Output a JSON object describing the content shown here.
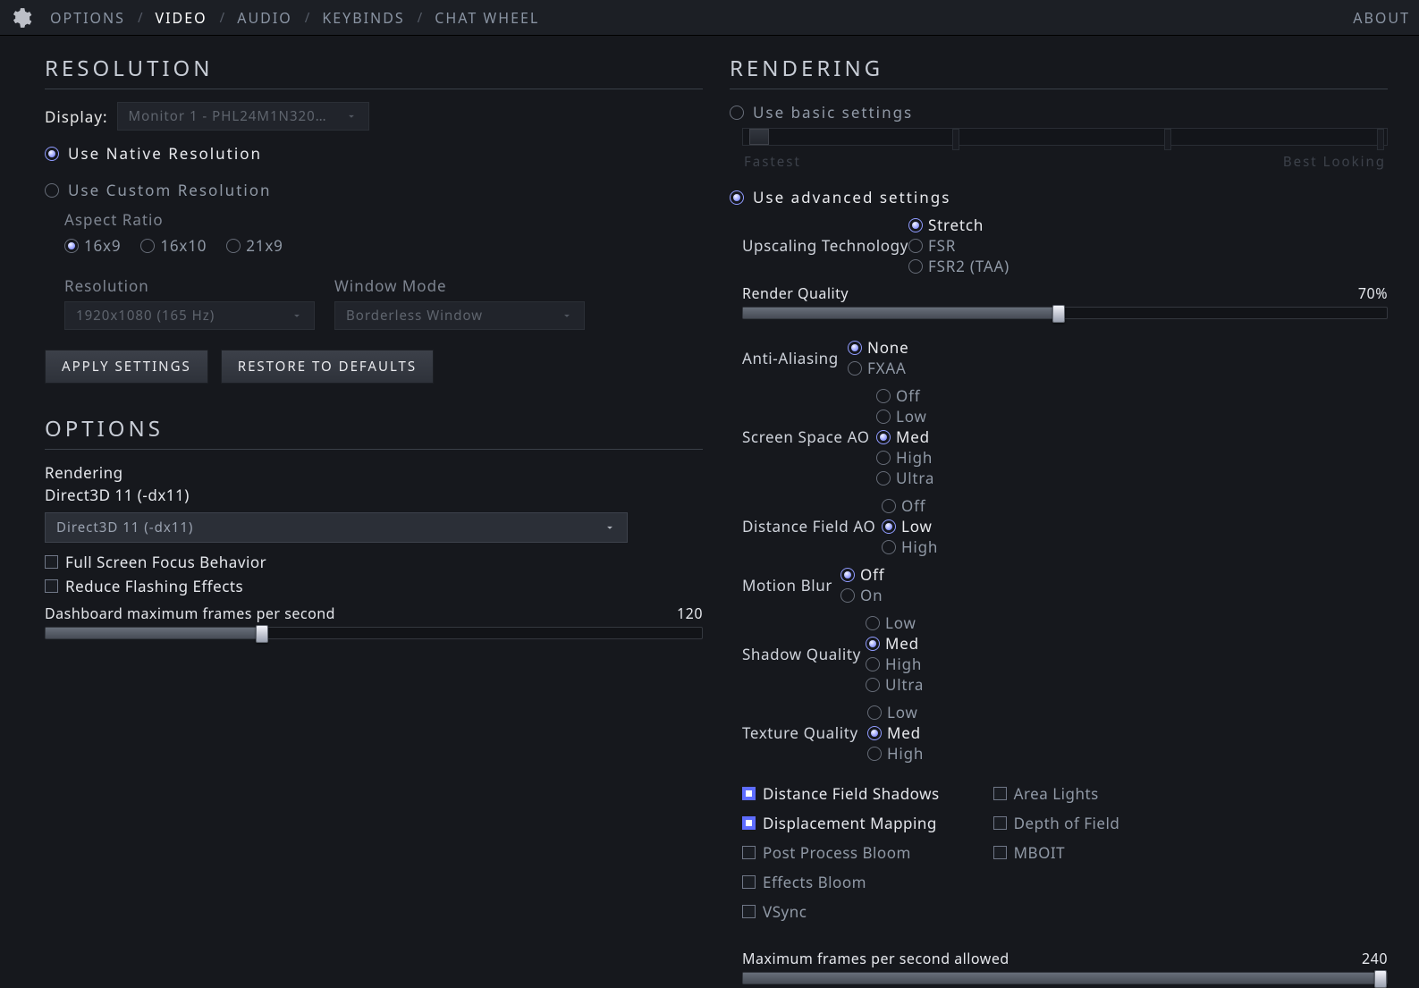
{
  "tabs": [
    "OPTIONS",
    "VIDEO",
    "AUDIO",
    "KEYBINDS",
    "CHAT WHEEL"
  ],
  "active_tab": 1,
  "about": "ABOUT",
  "resolution": {
    "title": "RESOLUTION",
    "display_label": "Display:",
    "display_value": "Monitor 1 - PHL24M1N320…",
    "native_label": "Use Native Resolution",
    "custom_label": "Use Custom Resolution",
    "mode": "native",
    "aspect_label": "Aspect Ratio",
    "aspects": [
      "16x9",
      "16x10",
      "21x9"
    ],
    "aspect_selected": 0,
    "res_label": "Resolution",
    "res_value": "1920x1080 (165 Hz)",
    "window_label": "Window Mode",
    "window_value": "Borderless Window",
    "apply_btn": "APPLY SETTINGS",
    "restore_btn": "RESTORE TO DEFAULTS"
  },
  "options": {
    "title": "OPTIONS",
    "rendering_label": "Rendering",
    "rendering_current": "Direct3D 11 (-dx11)",
    "api_value": "Direct3D 11 (-dx11)",
    "fullscreen_focus": {
      "label": "Full Screen Focus Behavior",
      "on": false
    },
    "reduce_flash": {
      "label": "Reduce Flashing Effects",
      "on": false
    },
    "dash_fps": {
      "label": "Dashboard maximum frames per second",
      "value": 120,
      "min": 0,
      "max": 360,
      "pct": 33
    }
  },
  "rendering": {
    "title": "RENDERING",
    "basic_label": "Use basic settings",
    "advanced_label": "Use advanced settings",
    "mode": "advanced",
    "basic_slider": {
      "low": "Fastest",
      "high": "Best Looking",
      "pos_pct": 1,
      "notches": [
        33,
        66,
        99
      ]
    },
    "upscale": {
      "label": "Upscaling Technology",
      "opts": [
        "Stretch",
        "FSR",
        "FSR2 (TAA)"
      ],
      "sel": 0
    },
    "render_quality": {
      "label": "Render Quality",
      "value": "70%",
      "pct": 49
    },
    "aa": {
      "label": "Anti-Aliasing",
      "opts": [
        "None",
        "FXAA"
      ],
      "sel": 0
    },
    "ssao": {
      "label": "Screen Space AO",
      "opts": [
        "Off",
        "Low",
        "Med",
        "High",
        "Ultra"
      ],
      "sel": 2
    },
    "dfao": {
      "label": "Distance Field AO",
      "opts": [
        "Off",
        "Low",
        "High"
      ],
      "sel": 1
    },
    "mblur": {
      "label": "Motion Blur",
      "opts": [
        "Off",
        "On"
      ],
      "sel": 0
    },
    "shadow": {
      "label": "Shadow Quality",
      "opts": [
        "Low",
        "Med",
        "High",
        "Ultra"
      ],
      "sel": 1
    },
    "texture": {
      "label": "Texture Quality",
      "opts": [
        "Low",
        "Med",
        "High"
      ],
      "sel": 1
    },
    "checks_left": [
      {
        "label": "Distance Field Shadows",
        "on": true
      },
      {
        "label": "Displacement Mapping",
        "on": true
      },
      {
        "label": "Post Process Bloom",
        "on": false
      },
      {
        "label": "Effects Bloom",
        "on": false
      },
      {
        "label": "VSync",
        "on": false
      }
    ],
    "checks_right": [
      {
        "label": "Area Lights",
        "on": false
      },
      {
        "label": "Depth of Field",
        "on": false
      },
      {
        "label": "MBOIT",
        "on": false
      }
    ],
    "max_fps": {
      "label": "Maximum frames per second allowed",
      "value": 240,
      "pct": 99
    }
  }
}
